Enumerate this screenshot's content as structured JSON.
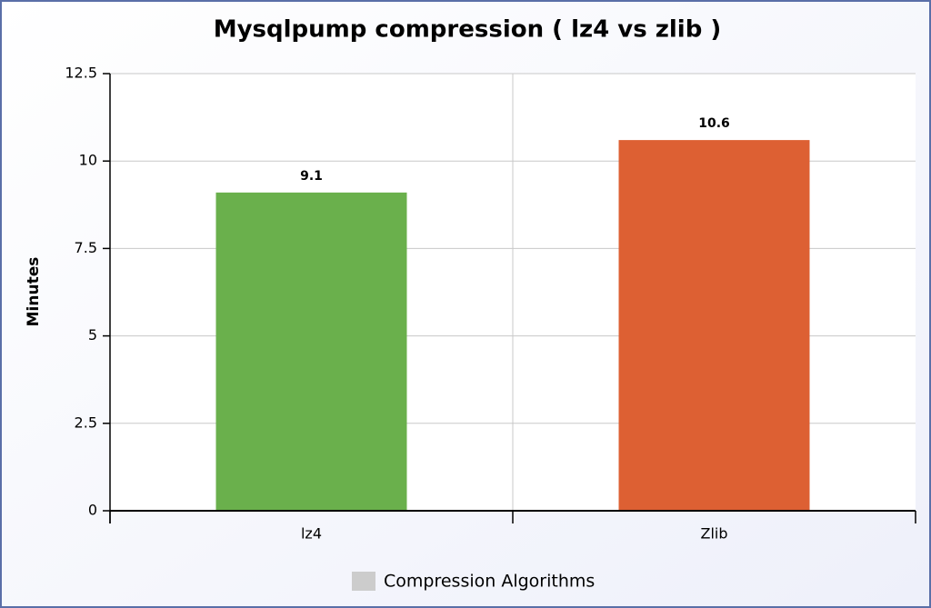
{
  "chart_data": {
    "type": "bar",
    "title": "Mysqlpump compression ( lz4 vs zlib )",
    "y_label": "Minutes",
    "categories": [
      "lz4",
      "Zlib"
    ],
    "series": [
      {
        "name": "Compression Algorithms",
        "color": "#cccccc",
        "values": [
          9.1,
          10.6
        ]
      }
    ],
    "bar_colors": [
      "#6ab04c",
      "#dd6033"
    ],
    "ylim": [
      0,
      12.5
    ],
    "yticks": [
      0,
      2.5,
      5,
      7.5,
      10,
      12.5
    ],
    "grid": true
  }
}
